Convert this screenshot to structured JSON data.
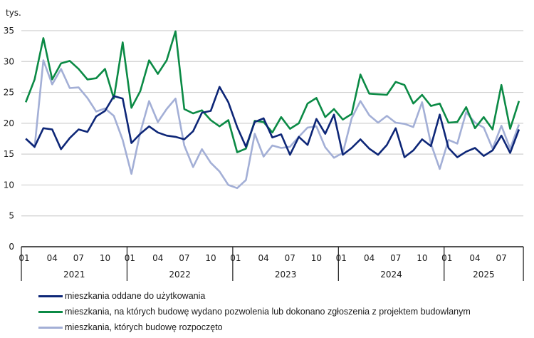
{
  "chart_data": {
    "type": "line",
    "title": "",
    "ylabel": "tys.",
    "xlabel": "",
    "ylim": [
      0,
      35
    ],
    "yticks": [
      0,
      5,
      10,
      15,
      20,
      25,
      30,
      35
    ],
    "grid": true,
    "legend_position": "bottom",
    "years": [
      "2021",
      "2022",
      "2023",
      "2024",
      "2025"
    ],
    "month_tick_labels": [
      "01",
      "04",
      "07",
      "10"
    ],
    "months_per_year": [
      12,
      12,
      12,
      12,
      9
    ],
    "series": [
      {
        "name": "mieszkania oddane do użytkowania",
        "color": "#0d2677",
        "values": [
          17.5,
          16.2,
          19.2,
          19.0,
          15.8,
          17.6,
          19.0,
          18.6,
          21.1,
          22.0,
          24.4,
          24.0,
          16.8,
          18.3,
          19.5,
          18.5,
          18.0,
          17.8,
          17.4,
          18.7,
          21.7,
          22.0,
          25.9,
          23.4,
          19.4,
          16.2,
          20.2,
          20.8,
          17.7,
          18.2,
          14.9,
          17.8,
          16.5,
          20.7,
          18.3,
          21.4,
          14.9,
          16.0,
          17.4,
          15.9,
          14.9,
          16.5,
          19.2,
          14.5,
          15.6,
          17.4,
          16.3,
          21.4,
          16.0,
          14.5,
          15.4,
          16.0,
          14.7,
          15.6,
          18.0,
          15.2,
          19.0
        ]
      },
      {
        "name": "mieszkania, na których budowę wydano pozwolenia lub dokonano zgłoszenia z projektem budowlanym",
        "color": "#0b8a45",
        "values": [
          23.4,
          27.1,
          33.8,
          27.1,
          29.7,
          30.1,
          28.8,
          27.1,
          27.3,
          28.8,
          24.0,
          33.1,
          22.5,
          25.2,
          30.2,
          28.0,
          30.2,
          34.9,
          22.3,
          21.6,
          22.1,
          20.5,
          19.5,
          20.5,
          15.3,
          15.9,
          20.4,
          20.2,
          18.5,
          21.0,
          19.1,
          20.0,
          23.2,
          24.1,
          21.0,
          22.3,
          20.6,
          21.5,
          27.9,
          24.8,
          24.7,
          24.6,
          26.7,
          26.2,
          23.2,
          24.6,
          22.8,
          23.2,
          20.1,
          20.2,
          22.6,
          19.2,
          21.0,
          19.0,
          26.2,
          19.1,
          23.6
        ]
      },
      {
        "name": "mieszkania, których budowę rozpoczęto",
        "color": "#a3afd6",
        "values": [
          17.5,
          16.1,
          30.2,
          26.3,
          28.8,
          25.7,
          25.8,
          24.1,
          21.9,
          22.4,
          21.2,
          17.3,
          11.8,
          18.5,
          23.6,
          20.2,
          22.3,
          24.0,
          16.4,
          12.9,
          15.8,
          13.6,
          12.2,
          10.0,
          9.5,
          10.8,
          18.3,
          14.6,
          16.4,
          16.0,
          16.2,
          17.8,
          19.3,
          19.5,
          16.1,
          14.4,
          15.2,
          20.8,
          23.6,
          21.3,
          20.1,
          21.2,
          20.1,
          19.9,
          19.4,
          23.4,
          16.7,
          12.6,
          17.3,
          16.7,
          21.8,
          20.1,
          19.3,
          15.9,
          19.6,
          15.9,
          19.8
        ]
      }
    ]
  }
}
